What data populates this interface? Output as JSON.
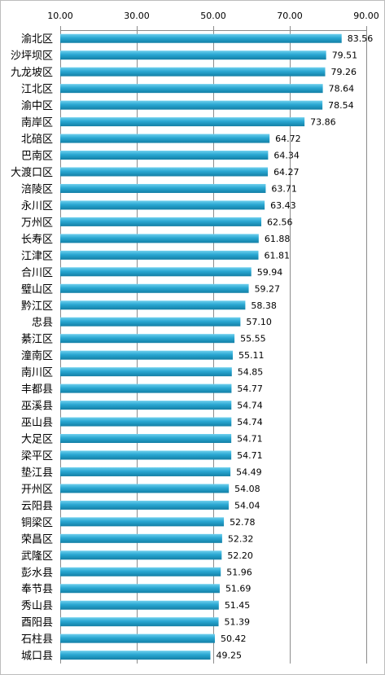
{
  "chart_data": {
    "type": "bar",
    "orientation": "horizontal",
    "categories": [
      "渝北区",
      "沙坪坝区",
      "九龙坡区",
      "江北区",
      "渝中区",
      "南岸区",
      "北碚区",
      "巴南区",
      "大渡口区",
      "涪陵区",
      "永川区",
      "万州区",
      "长寿区",
      "江津区",
      "合川区",
      "璧山区",
      "黔江区",
      "忠县",
      "綦江区",
      "潼南区",
      "南川区",
      "丰都县",
      "巫溪县",
      "巫山县",
      "大足区",
      "梁平区",
      "垫江县",
      "开州区",
      "云阳县",
      "铜梁区",
      "荣昌区",
      "武隆区",
      "彭水县",
      "奉节县",
      "秀山县",
      "酉阳县",
      "石柱县",
      "城口县"
    ],
    "values": [
      83.56,
      79.51,
      79.26,
      78.64,
      78.54,
      73.86,
      64.72,
      64.34,
      64.27,
      63.71,
      63.43,
      62.56,
      61.88,
      61.81,
      59.94,
      59.27,
      58.38,
      57.1,
      55.55,
      55.11,
      54.85,
      54.77,
      54.74,
      54.74,
      54.71,
      54.71,
      54.49,
      54.08,
      54.04,
      52.78,
      52.32,
      52.2,
      51.96,
      51.69,
      51.45,
      51.39,
      50.42,
      49.25
    ],
    "value_labels": [
      "83.56",
      "79.51",
      "79.26",
      "78.64",
      "78.54",
      "73.86",
      "64.72",
      "64.34",
      "64.27",
      "63.71",
      "63.43",
      "62.56",
      "61.88",
      "61.81",
      "59.94",
      "59.27",
      "58.38",
      "57.10",
      "55.55",
      "55.11",
      "54.85",
      "54.77",
      "54.74",
      "54.74",
      "54.71",
      "54.71",
      "54.49",
      "54.08",
      "54.04",
      "52.78",
      "52.32",
      "52.20",
      "51.96",
      "51.69",
      "51.45",
      "51.39",
      "50.42",
      "49.25"
    ],
    "xlim": [
      10,
      90
    ],
    "xticks": [
      10,
      30,
      50,
      70,
      90
    ],
    "xtick_labels": [
      "10.00",
      "30.00",
      "50.00",
      "70.00",
      "90.00"
    ],
    "x_axis_position": "top",
    "grid": true,
    "legend": "none",
    "bar_color": "#1f9fc4"
  }
}
